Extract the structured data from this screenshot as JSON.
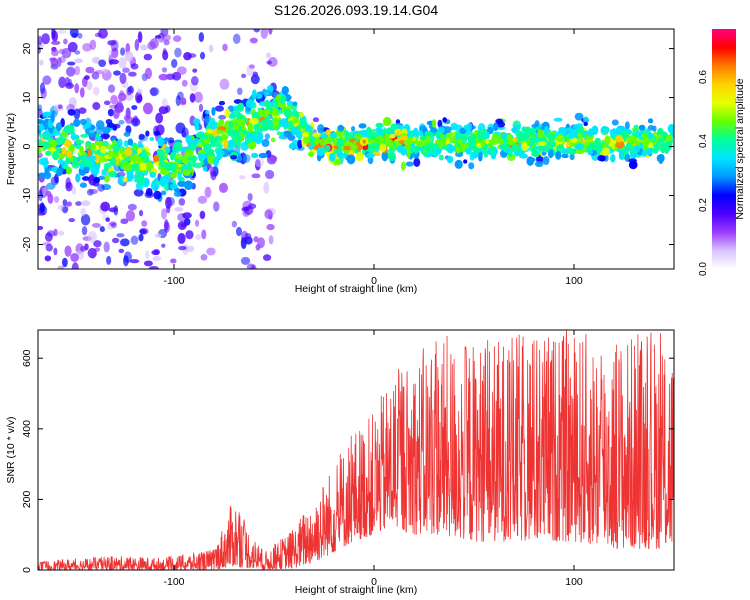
{
  "title": "S126.2026.093.19.14.G04",
  "chart_data": [
    {
      "type": "heatmap",
      "name": "spectrogram",
      "xlabel": "Height of straight line (km)",
      "ylabel": "Frequency (Hz)",
      "xlim": [
        -168,
        150
      ],
      "ylim": [
        -25,
        24
      ],
      "xticks": [
        -100,
        0,
        100
      ],
      "xtick_labels": [
        "-100",
        "0",
        "100"
      ],
      "yticks": [
        -20,
        -10,
        0,
        10,
        20
      ],
      "ytick_labels": [
        "-20",
        "-10",
        "0",
        "10",
        "20"
      ],
      "colorbar": {
        "label": "Normalized spectral amplitude",
        "range": [
          0.0,
          0.75
        ],
        "ticks": [
          0.0,
          0.2,
          0.4,
          0.6
        ],
        "tick_labels": [
          "0.0",
          "0.2",
          "0.4",
          "0.6"
        ],
        "colors": [
          "#ffffff",
          "#d9c2ff",
          "#9a3cff",
          "#4b00ff",
          "#0000ff",
          "#0098ff",
          "#00e6ff",
          "#00ff9a",
          "#66ff00",
          "#e6ff00",
          "#ffd200",
          "#ff7a00",
          "#ff0000",
          "#ff0080"
        ]
      },
      "signal_track": {
        "description_points_x": [
          -168,
          -140,
          -120,
          -100,
          -80,
          -60,
          -45,
          -40,
          -30,
          -20,
          0,
          50,
          100,
          150
        ],
        "center_freq_hz": [
          0,
          -1,
          -3,
          -4,
          2,
          5,
          7,
          5,
          1,
          0,
          1,
          1,
          1,
          1
        ]
      }
    },
    {
      "type": "line",
      "name": "snr",
      "xlabel": "Height of straight line (km)",
      "ylabel": "SNR (10 * v/v)",
      "xlim": [
        -168,
        150
      ],
      "ylim": [
        0,
        680
      ],
      "xticks": [
        -100,
        0,
        100
      ],
      "xtick_labels": [
        "-100",
        "0",
        "100"
      ],
      "yticks": [
        0,
        200,
        400,
        600
      ],
      "ytick_labels": [
        "0",
        "200",
        "400",
        "600"
      ],
      "series": [
        {
          "name": "SNR",
          "color": "#ee3333",
          "envelope_x": [
            -168,
            -130,
            -105,
            -80,
            -70,
            -62,
            -55,
            -40,
            -30,
            -20,
            -10,
            0,
            10,
            20,
            30,
            50,
            80,
            100,
            120,
            150
          ],
          "envelope_max": [
            25,
            40,
            35,
            60,
            210,
            110,
            50,
            120,
            220,
            300,
            400,
            450,
            570,
            600,
            670,
            650,
            680,
            680,
            670,
            680
          ],
          "envelope_min": [
            0,
            0,
            0,
            0,
            10,
            5,
            0,
            5,
            20,
            50,
            80,
            100,
            120,
            100,
            100,
            80,
            80,
            80,
            60,
            60
          ]
        }
      ]
    }
  ]
}
